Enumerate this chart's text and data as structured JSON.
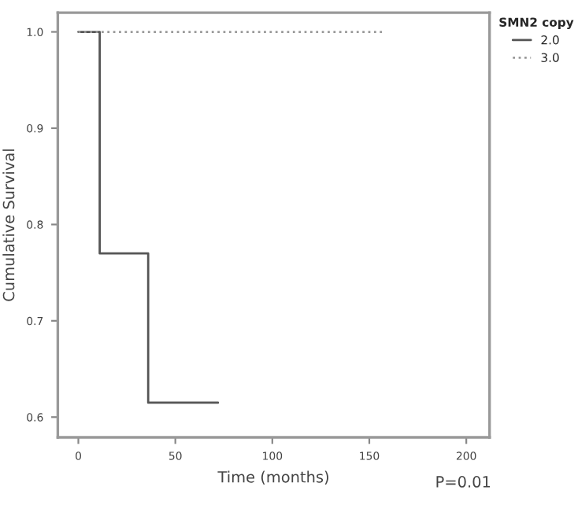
{
  "chart_data": {
    "type": "step",
    "xlabel": "Time (months)",
    "ylabel": "Cumulative Survival",
    "legend_title": "SMN2 copy",
    "legend": "top right",
    "grid": false,
    "xlim": [
      -10.6,
      212
    ],
    "xticks": [
      0,
      50,
      100,
      150,
      200
    ],
    "ylim": [
      0.579,
      1.02
    ],
    "yticks": [
      {
        "value": 0.6,
        "label": "0.6"
      },
      {
        "value": 0.7,
        "label": "0.7"
      },
      {
        "value": 0.8,
        "label": "0.8"
      },
      {
        "value": 0.9,
        "label": "0.9"
      },
      {
        "value": 1.0,
        "label": "1.0"
      }
    ],
    "series": [
      {
        "name": "2.0",
        "color": "#555555",
        "line_style": "solid",
        "x": [
          0,
          11,
          36,
          72
        ],
        "values": [
          1.0,
          0.77,
          0.615,
          0.615
        ]
      },
      {
        "name": "3.0",
        "color": "#999999",
        "line_style": "dotted",
        "x": [
          0,
          157
        ],
        "values": [
          1.0,
          1.0
        ]
      }
    ],
    "annotations": [
      "P=0.01"
    ]
  }
}
